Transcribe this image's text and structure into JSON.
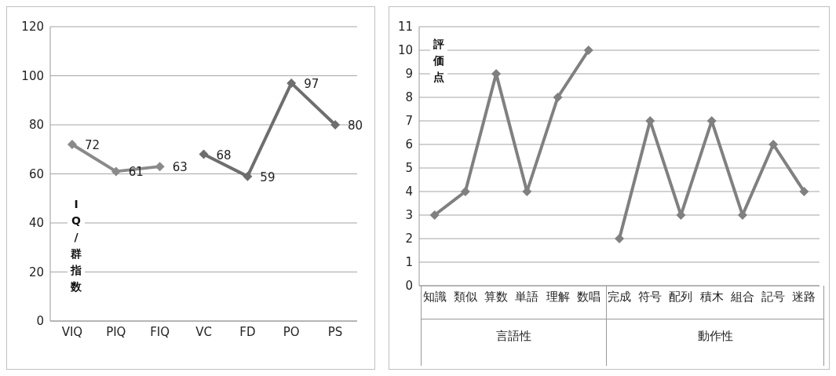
{
  "chart_data": [
    {
      "type": "line",
      "categories": [
        "VIQ",
        "PIQ",
        "FIQ",
        "VC",
        "FD",
        "PO",
        "PS"
      ],
      "ylabel": "IQ/群指数",
      "series": [
        {
          "color": "#8a8a8a",
          "values": [
            72,
            61,
            63,
            null,
            null,
            null,
            null
          ]
        },
        {
          "color": "#6e6e6e",
          "values": [
            null,
            null,
            null,
            68,
            59,
            97,
            80
          ]
        }
      ],
      "ylim": [
        0,
        120
      ],
      "yticks": [
        0,
        20,
        40,
        60,
        80,
        100,
        120
      ],
      "grid": "y",
      "marker": "diamond",
      "data_labels": true
    },
    {
      "type": "line",
      "categories": [
        "知識",
        "類似",
        "算数",
        "単語",
        "理解",
        "数唱",
        "完成",
        "符号",
        "配列",
        "積木",
        "組合",
        "記号",
        "迷路"
      ],
      "ylabel": "評価点",
      "series": [
        {
          "color": "#808080",
          "values": [
            3,
            4,
            9,
            4,
            8,
            10,
            null,
            null,
            null,
            null,
            null,
            null,
            null
          ]
        },
        {
          "color": "#808080",
          "values": [
            null,
            null,
            null,
            null,
            null,
            null,
            2,
            7,
            3,
            7,
            3,
            6,
            4
          ]
        }
      ],
      "annotations": [
        "言語性",
        "動作性"
      ],
      "ylim": [
        0,
        11
      ],
      "yticks": [
        0,
        1,
        2,
        3,
        4,
        5,
        6,
        7,
        8,
        9,
        10,
        11
      ],
      "grid": "y",
      "marker": "diamond"
    }
  ]
}
